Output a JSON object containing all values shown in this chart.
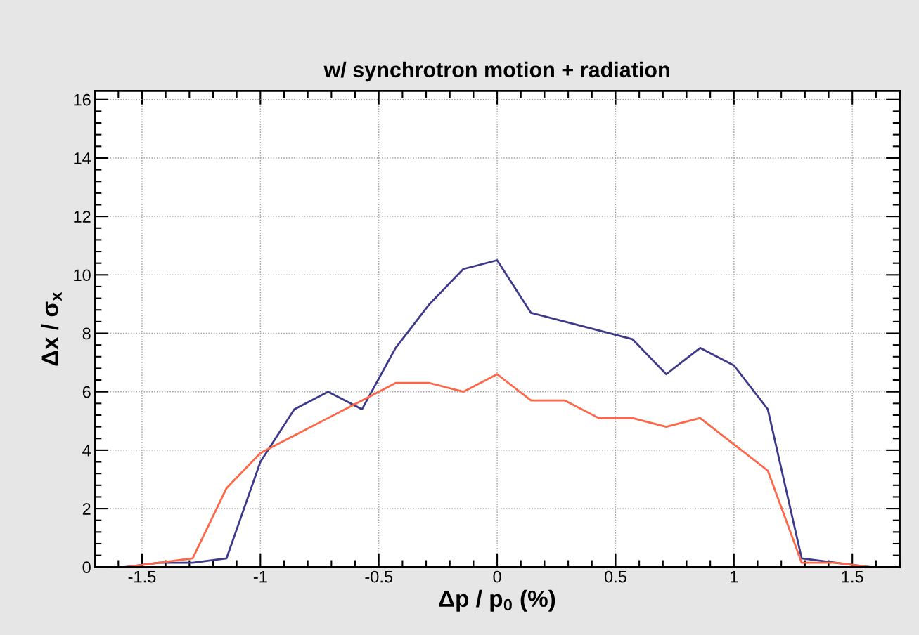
{
  "chart_data": {
    "type": "line",
    "title": "w/ synchrotron motion + radiation",
    "xlabel": "Δp / p$_{0}$ (%)",
    "ylabel": "Δx / σ$_{x}$",
    "x": [
      -1.571,
      -1.429,
      -1.286,
      -1.143,
      -1.0,
      -0.857,
      -0.714,
      -0.571,
      -0.429,
      -0.286,
      -0.143,
      0,
      0.143,
      0.286,
      0.429,
      0.571,
      0.714,
      0.857,
      1.0,
      1.143,
      1.286,
      1.429,
      1.571
    ],
    "series": [
      {
        "color": "#3d3a8c",
        "values": [
          0,
          0.15,
          0.15,
          0.3,
          3.6,
          5.4,
          6.0,
          5.4,
          7.5,
          9.0,
          10.2,
          10.5,
          8.7,
          8.4,
          8.1,
          7.8,
          6.6,
          7.5,
          6.9,
          5.4,
          0.3,
          0.15,
          0
        ]
      },
      {
        "color": "#ff6647",
        "values": [
          0,
          0.15,
          0.3,
          2.7,
          3.9,
          4.5,
          5.1,
          5.7,
          6.3,
          6.3,
          6.0,
          6.6,
          5.7,
          5.7,
          5.1,
          5.1,
          4.8,
          5.1,
          4.2,
          3.3,
          0.15,
          0.15,
          0
        ]
      }
    ],
    "xlim": [
      -1.7,
      1.7
    ],
    "ylim": [
      0,
      16.3
    ],
    "xticks": [
      -1.5,
      -1,
      -0.5,
      0,
      0.5,
      1,
      1.5
    ],
    "yticks": [
      0,
      2,
      4,
      6,
      8,
      10,
      12,
      14,
      16
    ],
    "grid": true,
    "line_style": "solid",
    "marker": "none"
  }
}
